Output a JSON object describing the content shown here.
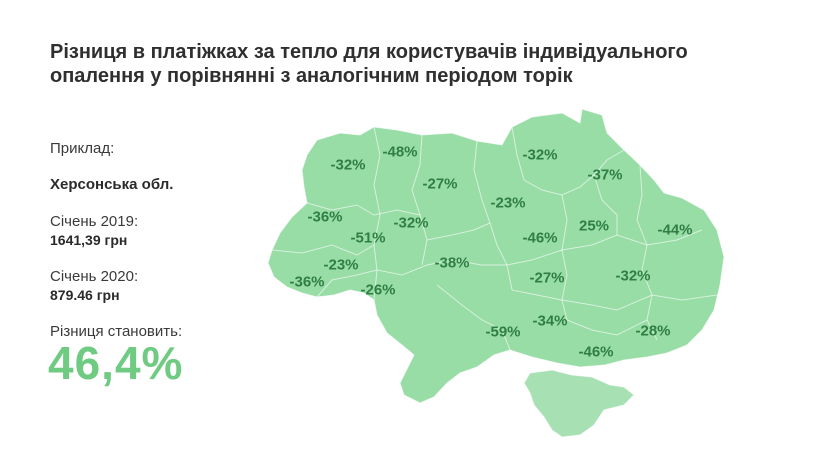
{
  "title": {
    "line1": "Різниця в платіжках за тепло для користувачів індивідуального",
    "line2": "опалення у порівнянні з аналогічним періодом торік"
  },
  "example": {
    "label": "Приклад:",
    "region": "Херсонська обл.",
    "jan2019_label": "Січень 2019:",
    "jan2019_value": "1641,39 грн",
    "jan2020_label": "Січень 2020:",
    "jan2020_value": "879.46 грн",
    "difference_label": "Різниця становить:",
    "difference_value": "46,4%"
  },
  "colors": {
    "map_fill": "#98dca6",
    "label_text": "#2f7f45",
    "accent": "#6fcb82"
  },
  "map_labels": [
    "-32%",
    "-48%",
    "-27%",
    "-32%",
    "-37%",
    "-36%",
    "-32%",
    "-51%",
    "-23%",
    "-46%",
    "25%",
    "-44%",
    "-23%",
    "-38%",
    "-27%",
    "-36%",
    "-26%",
    "-32%",
    "-59%",
    "-34%",
    "-28%",
    "-46%"
  ]
}
